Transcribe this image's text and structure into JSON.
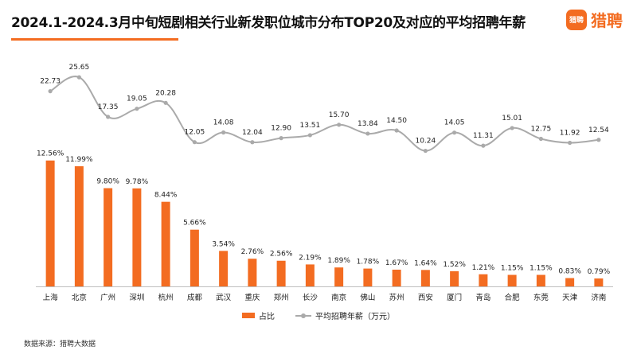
{
  "header": {
    "title": "2024.1-2024.3月中旬短剧相关行业新发职位城市分布TOP20及对应的平均招聘年薪",
    "logo_badge": "猎聘",
    "logo_text": "猎聘"
  },
  "source_note": "数据来源：猎聘大数据",
  "colors": {
    "bar": "#f36c21",
    "line": "#aaaaaa",
    "accent": "#f36c21"
  },
  "chart_data": {
    "type": "bar",
    "title": "2024.1-2024.3月中旬短剧相关行业新发职位城市分布TOP20及对应的平均招聘年薪",
    "categories": [
      "上海",
      "北京",
      "广州",
      "深圳",
      "杭州",
      "成都",
      "武汉",
      "重庆",
      "郑州",
      "长沙",
      "南京",
      "佛山",
      "苏州",
      "西安",
      "厦门",
      "青岛",
      "合肥",
      "东莞",
      "天津",
      "济南"
    ],
    "series": [
      {
        "name": "占比",
        "type": "bar",
        "values": [
          12.56,
          11.99,
          9.8,
          9.78,
          8.44,
          5.66,
          3.54,
          2.76,
          2.56,
          2.19,
          1.89,
          1.78,
          1.67,
          1.64,
          1.52,
          1.21,
          1.15,
          1.15,
          0.83,
          0.79
        ],
        "labels": [
          "12.56%",
          "11.99%",
          "9.80%",
          "9.78%",
          "8.44%",
          "5.66%",
          "3.54%",
          "2.76%",
          "2.56%",
          "2.19%",
          "1.89%",
          "1.78%",
          "1.67%",
          "1.64%",
          "1.52%",
          "1.21%",
          "1.15%",
          "1.15%",
          "0.83%",
          "0.79%"
        ]
      },
      {
        "name": "平均招聘年薪（万元）",
        "type": "line",
        "values": [
          22.73,
          25.65,
          17.35,
          19.05,
          20.28,
          12.05,
          14.08,
          12.04,
          12.9,
          13.51,
          15.7,
          13.84,
          14.5,
          10.24,
          14.05,
          11.31,
          15.01,
          12.75,
          11.92,
          12.54
        ],
        "labels": [
          "22.73",
          "25.65",
          "17.35",
          "19.05",
          "20.28",
          "12.05",
          "14.08",
          "12.04",
          "12.90",
          "13.51",
          "15.70",
          "13.84",
          "14.50",
          "10.24",
          "14.05",
          "11.31",
          "15.01",
          "12.75",
          "11.92",
          "12.54"
        ]
      }
    ],
    "grid": false,
    "legend_position": "bottom"
  }
}
